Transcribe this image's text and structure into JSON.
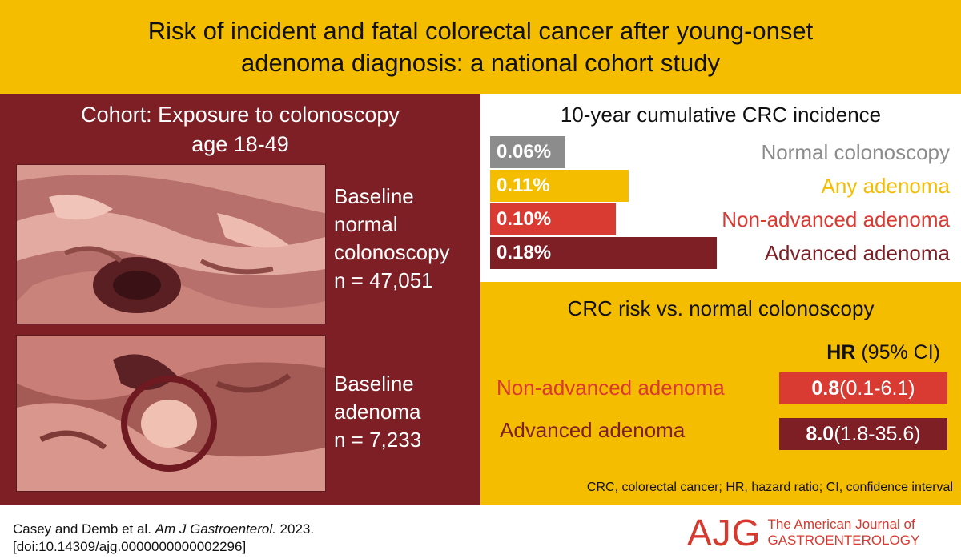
{
  "title": {
    "line1": "Risk of incident and fatal colorectal cancer after young-onset",
    "line2": "adenoma diagnosis: a national cohort study"
  },
  "cohort": {
    "title_line1": "Cohort: Exposure to colonoscopy",
    "title_line2": "age 18-49",
    "groups": [
      {
        "lines": [
          "Baseline",
          "normal",
          "colonoscopy",
          "n = 47,051"
        ]
      },
      {
        "lines": [
          "Baseline",
          "adenoma",
          "n = 7,233"
        ]
      }
    ]
  },
  "incidence": {
    "title": "10-year cumulative CRC incidence",
    "rows": [
      {
        "value": "0.06%",
        "label": "Normal colonoscopy",
        "fraction": 0.06,
        "color": "#8c8c8c"
      },
      {
        "value": "0.11%",
        "label": "Any adenoma",
        "fraction": 0.11,
        "color": "#f5bd00"
      },
      {
        "value": "0.10%",
        "label": "Non-advanced adenoma",
        "fraction": 0.1,
        "color": "#d93a32"
      },
      {
        "value": "0.18%",
        "label": "Advanced adenoma",
        "fraction": 0.18,
        "color": "#7d1f25"
      }
    ]
  },
  "hazard": {
    "title": "CRC risk vs. normal colonoscopy",
    "header_bold": "HR",
    "header_rest": " (95% CI)",
    "rows": [
      {
        "label": "Non-advanced adenoma",
        "hr": "0.8",
        "ci": " (0.1-6.1)",
        "label_color": "#d93a32",
        "box_color": "#d93a32"
      },
      {
        "label": "Advanced adenoma",
        "hr": "8.0",
        "ci": " (1.8-35.6)",
        "label_color": "#7d1f25",
        "box_color": "#7d1f25"
      }
    ],
    "footnote": "CRC, colorectal cancer; HR, hazard ratio; CI, confidence interval"
  },
  "citation": {
    "authors": "Casey and Demb et al. ",
    "journal": "Am J Gastroenterol.",
    "year": " 2023.",
    "doi": "[doi:10.14309/ajg.0000000000002296]"
  },
  "logo": {
    "mark": "AJG",
    "line1": "The American Journal of",
    "line2": "GASTROENTEROLOGY"
  },
  "colors": {
    "gold": "#f5bd00",
    "maroon": "#7d1f25",
    "red": "#d93a32",
    "gray": "#8c8c8c"
  }
}
